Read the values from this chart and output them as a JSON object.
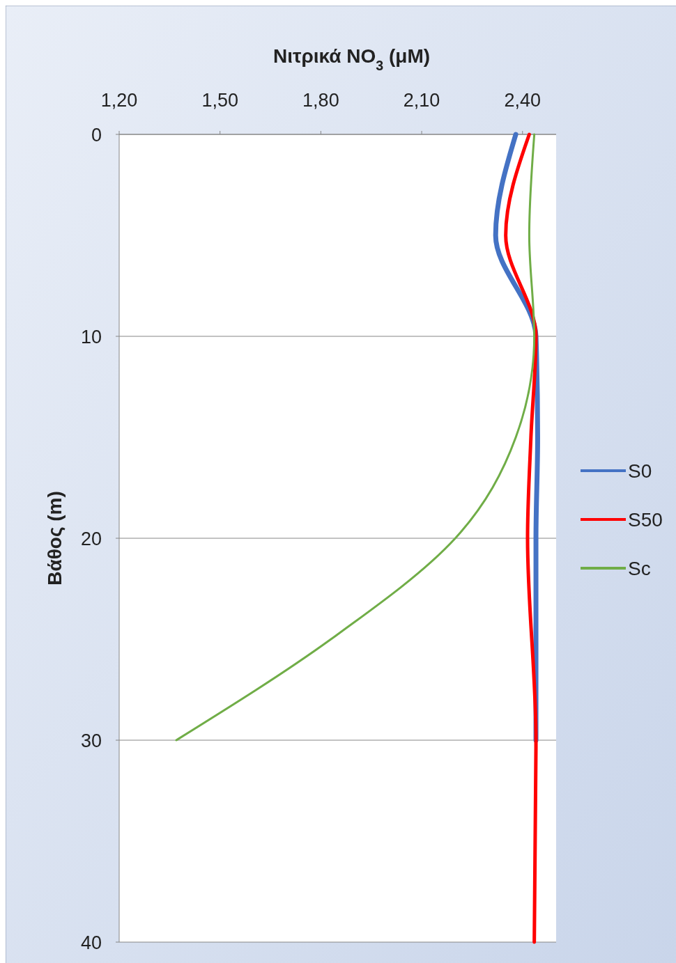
{
  "chart_data": {
    "type": "line",
    "xlabel": "Νιτρικά NO$_{3}$  (μM)",
    "ylabel": "Βάθος (m)",
    "xlim": [
      1.2,
      2.5
    ],
    "xticks": [
      {
        "value": 1.2,
        "label": "1,20"
      },
      {
        "value": 1.5,
        "label": "1,50"
      },
      {
        "value": 1.8,
        "label": "1,80"
      },
      {
        "value": 2.1,
        "label": "2,10"
      },
      {
        "value": 2.4,
        "label": "2,40"
      }
    ],
    "ylim": [
      40,
      0
    ],
    "yticks": [
      0,
      10,
      20,
      30,
      40
    ],
    "grid": "y",
    "legend": "right",
    "line_style": "solid",
    "marker": "none",
    "series": [
      {
        "name": "S0",
        "color": "#4472c4",
        "x": [
          2.38,
          2.32,
          2.44,
          2.445,
          2.44,
          2.44
        ],
        "values": [
          0,
          5,
          10,
          15,
          20,
          30
        ]
      },
      {
        "name": "S50",
        "color": "#ff0000",
        "x": [
          2.42,
          2.35,
          2.44,
          2.425,
          2.415,
          2.44,
          2.435
        ],
        "values": [
          0,
          5,
          10,
          15,
          20,
          30,
          40
        ]
      },
      {
        "name": "Sc",
        "color": "#70ad47",
        "x": [
          2.435,
          2.42,
          2.435,
          2.38,
          2.2,
          1.83,
          1.37
        ],
        "values": [
          0,
          5,
          10,
          15,
          20,
          25,
          30
        ]
      }
    ]
  }
}
